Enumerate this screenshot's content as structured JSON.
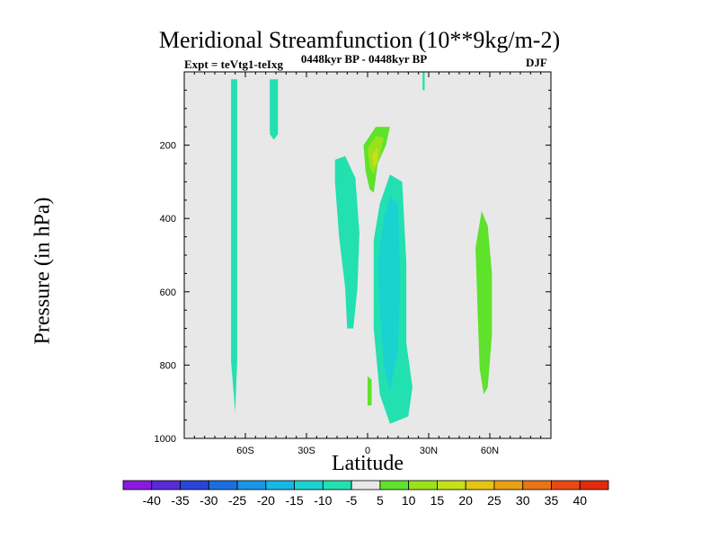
{
  "chart_data": {
    "type": "contour",
    "title": "Meridional Streamfunction (10**9kg/m-2)",
    "subtitle": "0448kyr BP - 0448kyr BP",
    "left_label": "Expt = teVtg1-teIxg",
    "right_label": "DJF",
    "xlabel": "Latitude",
    "ylabel": "Pressure (in hPa)",
    "xlim": [
      -90,
      90
    ],
    "ylim": [
      1000,
      0
    ],
    "x_ticks": [
      {
        "value": -60,
        "label": "60S"
      },
      {
        "value": -30,
        "label": "30S"
      },
      {
        "value": 0,
        "label": "0"
      },
      {
        "value": 30,
        "label": "30N"
      },
      {
        "value": 60,
        "label": "60N"
      }
    ],
    "y_ticks": [
      {
        "value": 200,
        "label": "200"
      },
      {
        "value": 400,
        "label": "400"
      },
      {
        "value": 600,
        "label": "600"
      },
      {
        "value": 800,
        "label": "800"
      },
      {
        "value": 1000,
        "label": "1000"
      }
    ],
    "background_color": "#e8e8e8",
    "colorbar": {
      "levels": [
        -40,
        -35,
        -30,
        -25,
        -20,
        -15,
        -10,
        -5,
        5,
        10,
        15,
        20,
        25,
        30,
        35,
        40
      ],
      "colors": [
        "#8a1ae0",
        "#5a2ad6",
        "#2a44d8",
        "#1c6ee0",
        "#1a96e6",
        "#16b6e6",
        "#1ad2d0",
        "#22e0b0",
        "#e8e8e8",
        "#5ee22c",
        "#9ae21c",
        "#c6e01a",
        "#e6c414",
        "#eaa012",
        "#e87414",
        "#e84a12",
        "#e22a0e"
      ]
    },
    "regions": [
      {
        "name": "contour-region-sh-high-lat",
        "level": -5,
        "points": [
          [
            -68,
            20
          ],
          [
            -67,
            20
          ],
          [
            -67,
            790
          ],
          [
            -65,
            930
          ],
          [
            -64,
            790
          ],
          [
            -64,
            20
          ]
        ]
      },
      {
        "name": "contour-region-sh-midlat-upper",
        "level": -5,
        "points": [
          [
            -48,
            20
          ],
          [
            -44,
            20
          ],
          [
            -44,
            170
          ],
          [
            -46,
            185
          ],
          [
            -48,
            170
          ]
        ]
      },
      {
        "name": "contour-region-sh-midlat-column",
        "level": 5,
        "points": [
          [
            -57,
            420
          ],
          [
            -55,
            400
          ],
          [
            -54,
            600
          ],
          [
            -55,
            830
          ],
          [
            -56,
            600
          ]
        ]
      },
      {
        "name": "contour-region-sh-subtropic",
        "level": -5,
        "points": [
          [
            -16,
            240
          ],
          [
            -11,
            230
          ],
          [
            -6,
            290
          ],
          [
            -4,
            440
          ],
          [
            -5,
            590
          ],
          [
            -7,
            700
          ],
          [
            -10,
            700
          ],
          [
            -11,
            590
          ],
          [
            -14,
            450
          ],
          [
            -16,
            300
          ]
        ]
      },
      {
        "name": "contour-region-eq-upper-green",
        "level": 5,
        "points": [
          [
            -4,
            170
          ],
          [
            3,
            120
          ],
          [
            14,
            120
          ],
          [
            15,
            160
          ],
          [
            8,
            220
          ],
          [
            4,
            300
          ],
          [
            2,
            400
          ],
          [
            2,
            480
          ],
          [
            0,
            480
          ],
          [
            -1,
            380
          ],
          [
            -3,
            290
          ],
          [
            -5,
            210
          ]
        ]
      },
      {
        "name": "contour-region-eq-upper-yellowgreen",
        "level": 10,
        "points": [
          [
            -2,
            200
          ],
          [
            4,
            150
          ],
          [
            11,
            150
          ],
          [
            9,
            200
          ],
          [
            5,
            250
          ],
          [
            3,
            330
          ],
          [
            1,
            320
          ],
          [
            -1,
            270
          ]
        ]
      },
      {
        "name": "contour-region-eq-upper-yellow",
        "level": 15,
        "points": [
          [
            0,
            210
          ],
          [
            4,
            175
          ],
          [
            8,
            180
          ],
          [
            6,
            230
          ],
          [
            3,
            280
          ],
          [
            1,
            260
          ]
        ]
      },
      {
        "name": "contour-region-eq-upper-orange",
        "level": 20,
        "points": [
          [
            2,
            230
          ],
          [
            5,
            205
          ],
          [
            5,
            245
          ],
          [
            3,
            260
          ]
        ]
      },
      {
        "name": "contour-region-eq-lower-green",
        "level": 5,
        "points": [
          [
            -2,
            800
          ],
          [
            0,
            700
          ],
          [
            2,
            780
          ],
          [
            4,
            890
          ],
          [
            3,
            965
          ],
          [
            0,
            960
          ],
          [
            -2,
            900
          ]
        ]
      },
      {
        "name": "contour-region-eq-lower-yellowgreen",
        "level": 10,
        "points": [
          [
            0,
            830
          ],
          [
            2,
            840
          ],
          [
            2,
            910
          ],
          [
            0,
            910
          ]
        ]
      },
      {
        "name": "contour-region-nh-tropic-cyan",
        "level": -5,
        "points": [
          [
            3,
            460
          ],
          [
            6,
            360
          ],
          [
            11,
            280
          ],
          [
            17,
            300
          ],
          [
            19,
            520
          ],
          [
            19,
            740
          ],
          [
            22,
            860
          ],
          [
            20,
            940
          ],
          [
            11,
            960
          ],
          [
            6,
            880
          ],
          [
            3,
            700
          ]
        ]
      },
      {
        "name": "contour-region-nh-tropic-skyblue",
        "level": -10,
        "points": [
          [
            5,
            520
          ],
          [
            8,
            400
          ],
          [
            11,
            340
          ],
          [
            15,
            360
          ],
          [
            16,
            560
          ],
          [
            15,
            760
          ],
          [
            11,
            870
          ],
          [
            8,
            800
          ],
          [
            6,
            650
          ]
        ]
      },
      {
        "name": "contour-region-nh-subtropic-upper",
        "level": 5,
        "points": [
          [
            24,
            80
          ],
          [
            25,
            60
          ],
          [
            26,
            100
          ],
          [
            27,
            260
          ],
          [
            27,
            440
          ],
          [
            25,
            460
          ],
          [
            24,
            300
          ]
        ]
      },
      {
        "name": "contour-region-nh-subtropic-lower",
        "level": 5,
        "points": [
          [
            21,
            350
          ],
          [
            25,
            300
          ],
          [
            27,
            450
          ],
          [
            27,
            650
          ],
          [
            24,
            700
          ],
          [
            22,
            650
          ],
          [
            21,
            500
          ]
        ]
      },
      {
        "name": "contour-region-nh-midlat-green",
        "level": 5,
        "points": [
          [
            49,
            80
          ],
          [
            51,
            70
          ],
          [
            55,
            120
          ],
          [
            59,
            220
          ],
          [
            62,
            350
          ],
          [
            67,
            460
          ],
          [
            67,
            600
          ],
          [
            68,
            770
          ],
          [
            63,
            870
          ],
          [
            61,
            950
          ],
          [
            55,
            950
          ],
          [
            51,
            930
          ],
          [
            50,
            770
          ],
          [
            51,
            600
          ],
          [
            50,
            450
          ],
          [
            49,
            300
          ]
        ]
      },
      {
        "name": "contour-region-nh-midlat-yellowgreen",
        "level": 10,
        "points": [
          [
            53,
            480
          ],
          [
            56,
            380
          ],
          [
            59,
            420
          ],
          [
            61,
            550
          ],
          [
            61,
            720
          ],
          [
            59,
            860
          ],
          [
            57,
            880
          ],
          [
            55,
            810
          ],
          [
            54,
            650
          ]
        ]
      },
      {
        "name": "contour-region-nh-subtropic-top-cyan",
        "level": -5,
        "points": [
          [
            27,
            0
          ],
          [
            28,
            0
          ],
          [
            28,
            50
          ],
          [
            27,
            50
          ]
        ]
      }
    ]
  }
}
